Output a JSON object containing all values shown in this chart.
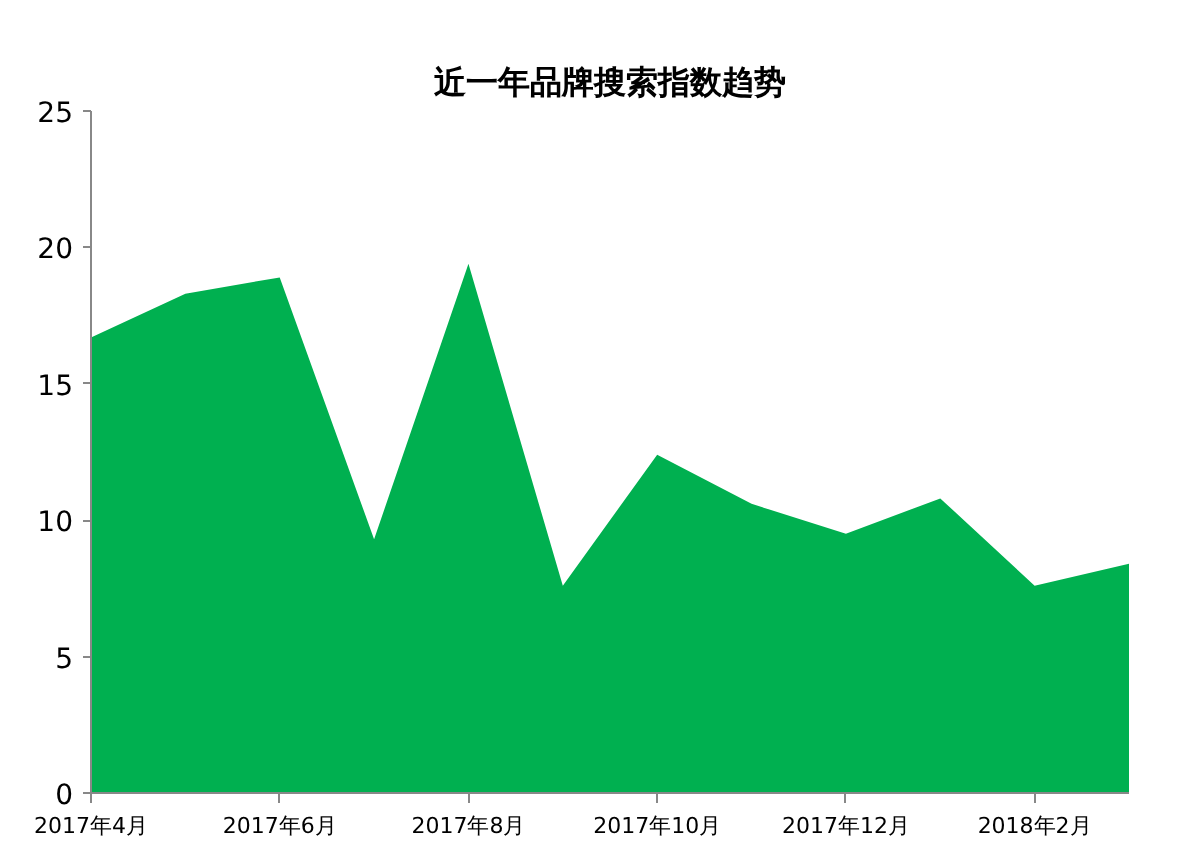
{
  "chart_data": {
    "type": "area",
    "title": "近一年品牌搜索指数趋势",
    "categories": [
      "2017年4月",
      null,
      "2017年6月",
      null,
      "2017年8月",
      null,
      "2017年10月",
      null,
      "2017年12月",
      null,
      "2018年2月",
      null
    ],
    "series": [
      {
        "color": "#00b050",
        "values": [
          16.7,
          18.3,
          18.9,
          9.3,
          19.4,
          7.6,
          12.4,
          10.6,
          9.5,
          10.8,
          7.6,
          8.4
        ]
      }
    ],
    "ylim": [
      0,
      25
    ],
    "yticks": [
      0,
      5,
      10,
      15,
      20,
      25
    ],
    "grid": false
  }
}
